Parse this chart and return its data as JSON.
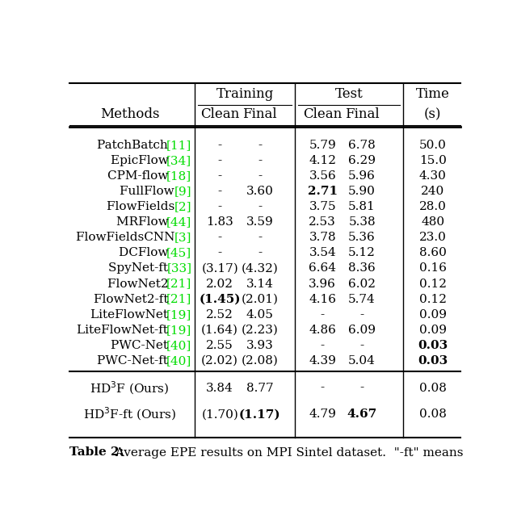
{
  "title": "Table 2:",
  "caption": " Average EPE results on MPI Sintel dataset.  \"-ft\" means",
  "rows_main": [
    {
      "method_black": "PatchBatch ",
      "method_green": "[11]",
      "tc": "-",
      "tf": "-",
      "ec": "5.79",
      "ef": "6.78",
      "time": "50.0",
      "b_tc": false,
      "b_tf": false,
      "b_ec": false,
      "b_ef": false,
      "b_t": false
    },
    {
      "method_black": "EpicFlow ",
      "method_green": "[34]",
      "tc": "-",
      "tf": "-",
      "ec": "4.12",
      "ef": "6.29",
      "time": "15.0",
      "b_tc": false,
      "b_tf": false,
      "b_ec": false,
      "b_ef": false,
      "b_t": false
    },
    {
      "method_black": "CPM-flow ",
      "method_green": "[18]",
      "tc": "-",
      "tf": "-",
      "ec": "3.56",
      "ef": "5.96",
      "time": "4.30",
      "b_tc": false,
      "b_tf": false,
      "b_ec": false,
      "b_ef": false,
      "b_t": false
    },
    {
      "method_black": "FullFlow ",
      "method_green": "[9]",
      "tc": "-",
      "tf": "3.60",
      "ec": "2.71",
      "ef": "5.90",
      "time": "240",
      "b_tc": false,
      "b_tf": false,
      "b_ec": true,
      "b_ef": false,
      "b_t": false
    },
    {
      "method_black": "FlowFields ",
      "method_green": "[2]",
      "tc": "-",
      "tf": "-",
      "ec": "3.75",
      "ef": "5.81",
      "time": "28.0",
      "b_tc": false,
      "b_tf": false,
      "b_ec": false,
      "b_ef": false,
      "b_t": false
    },
    {
      "method_black": "MRFlow ",
      "method_green": "[44]",
      "tc": "1.83",
      "tf": "3.59",
      "ec": "2.53",
      "ef": "5.38",
      "time": "480",
      "b_tc": false,
      "b_tf": false,
      "b_ec": false,
      "b_ef": false,
      "b_t": false
    },
    {
      "method_black": "FlowFieldsCNN ",
      "method_green": "[3]",
      "tc": "-",
      "tf": "-",
      "ec": "3.78",
      "ef": "5.36",
      "time": "23.0",
      "b_tc": false,
      "b_tf": false,
      "b_ec": false,
      "b_ef": false,
      "b_t": false
    },
    {
      "method_black": "DCFlow ",
      "method_green": "[45]",
      "tc": "-",
      "tf": "-",
      "ec": "3.54",
      "ef": "5.12",
      "time": "8.60",
      "b_tc": false,
      "b_tf": false,
      "b_ec": false,
      "b_ef": false,
      "b_t": false
    },
    {
      "method_black": "SpyNet-ft ",
      "method_green": "[33]",
      "tc": "(3.17)",
      "tf": "(4.32)",
      "ec": "6.64",
      "ef": "8.36",
      "time": "0.16",
      "b_tc": false,
      "b_tf": false,
      "b_ec": false,
      "b_ef": false,
      "b_t": false
    },
    {
      "method_black": "FlowNet2 ",
      "method_green": "[21]",
      "tc": "2.02",
      "tf": "3.14",
      "ec": "3.96",
      "ef": "6.02",
      "time": "0.12",
      "b_tc": false,
      "b_tf": false,
      "b_ec": false,
      "b_ef": false,
      "b_t": false
    },
    {
      "method_black": "FlowNet2-ft ",
      "method_green": "[21]",
      "tc": "(1.45)",
      "tf": "(2.01)",
      "ec": "4.16",
      "ef": "5.74",
      "time": "0.12",
      "b_tc": true,
      "b_tf": false,
      "b_ec": false,
      "b_ef": false,
      "b_t": false
    },
    {
      "method_black": "LiteFlowNet ",
      "method_green": "[19]",
      "tc": "2.52",
      "tf": "4.05",
      "ec": "-",
      "ef": "-",
      "time": "0.09",
      "b_tc": false,
      "b_tf": false,
      "b_ec": false,
      "b_ef": false,
      "b_t": false
    },
    {
      "method_black": "LiteFlowNet-ft ",
      "method_green": "[19]",
      "tc": "(1.64)",
      "tf": "(2.23)",
      "ec": "4.86",
      "ef": "6.09",
      "time": "0.09",
      "b_tc": false,
      "b_tf": false,
      "b_ec": false,
      "b_ef": false,
      "b_t": false
    },
    {
      "method_black": "PWC-Net ",
      "method_green": "[40]",
      "tc": "2.55",
      "tf": "3.93",
      "ec": "-",
      "ef": "-",
      "time": "0.03",
      "b_tc": false,
      "b_tf": false,
      "b_ec": false,
      "b_ef": false,
      "b_t": true
    },
    {
      "method_black": "PWC-Net-ft ",
      "method_green": "[40]",
      "tc": "(2.02)",
      "tf": "(2.08)",
      "ec": "4.39",
      "ef": "5.04",
      "time": "0.03",
      "b_tc": false,
      "b_tf": false,
      "b_ec": false,
      "b_ef": false,
      "b_t": true
    }
  ],
  "rows_ours": [
    {
      "method": "HD$^3$F (Ours)",
      "tc": "3.84",
      "tf": "8.77",
      "ec": "-",
      "ef": "-",
      "time": "0.08",
      "b_tc": false,
      "b_tf": false,
      "b_ec": false,
      "b_ef": false,
      "b_t": false
    },
    {
      "method": "HD$^3$F-ft (Ours)",
      "tc": "(1.70)",
      "tf": "(1.17)",
      "ec": "4.79",
      "ef": "4.67",
      "time": "0.08",
      "b_tc": false,
      "b_tf": true,
      "b_ec": false,
      "b_ef": true,
      "b_t": false
    }
  ],
  "green": "#00dd00",
  "black": "#000000",
  "white": "#ffffff",
  "fs": 11.0,
  "fs_hdr": 12.0
}
